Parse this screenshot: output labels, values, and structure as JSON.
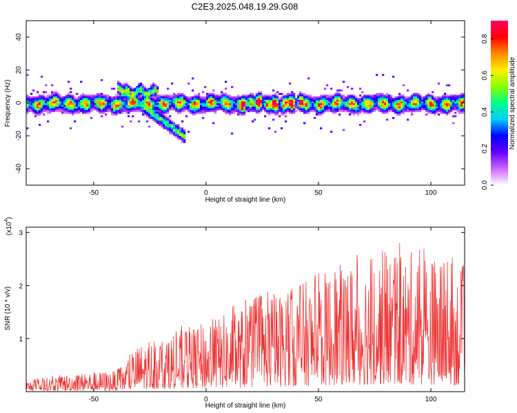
{
  "title": "C2E3.2025.048.19.29.G08",
  "chart_data": [
    {
      "type": "heatmap",
      "xlabel": "Height of straight line (km)",
      "ylabel": "Frequency (Hz)",
      "xlim": [
        -80,
        115
      ],
      "ylim": [
        -50,
        50
      ],
      "xticks": [
        -50,
        0,
        50,
        100
      ],
      "yticks": [
        -40,
        -20,
        0,
        20,
        40
      ],
      "colorbar": {
        "label": "Normalized spectral amplitude",
        "range": [
          0.0,
          0.9
        ],
        "ticks": [
          0.0,
          0.2,
          0.4,
          0.6,
          0.8
        ],
        "colors": [
          "#ffffff",
          "#cc66ff",
          "#6600ff",
          "#0000ff",
          "#00ccff",
          "#00ff88",
          "#88ff00",
          "#ffee00",
          "#ff8800",
          "#ff0000",
          "#ff0066"
        ]
      },
      "main_band": {
        "x": [
          -80,
          115
        ],
        "center_freq": 0,
        "half_width": 5
      },
      "branch": {
        "x": [
          -40,
          -10
        ],
        "freq": [
          10,
          -20
        ]
      },
      "upper_patch": {
        "x": [
          -38,
          -22
        ],
        "freq": [
          5,
          9
        ]
      }
    },
    {
      "type": "line",
      "xlabel": "Height of straight line (km)",
      "ylabel": "SNR (10 * v/v)",
      "exponent_label": "(x10",
      "exponent_power": "4",
      "exponent_close": ")",
      "xlim": [
        -80,
        115
      ],
      "ylim": [
        0,
        3.1
      ],
      "xticks": [
        -50,
        0,
        50,
        100
      ],
      "yticks": [
        1,
        2,
        3
      ],
      "series": [
        {
          "color": "#ee3333",
          "envelope_x": [
            -80,
            -60,
            -40,
            -35,
            -30,
            -20,
            -10,
            0,
            20,
            40,
            60,
            80,
            100,
            115
          ],
          "envelope_y": [
            0.2,
            0.35,
            0.4,
            0.6,
            0.9,
            1.0,
            1.2,
            1.3,
            1.7,
            2.0,
            2.4,
            2.7,
            2.6,
            2.3
          ]
        }
      ]
    }
  ]
}
